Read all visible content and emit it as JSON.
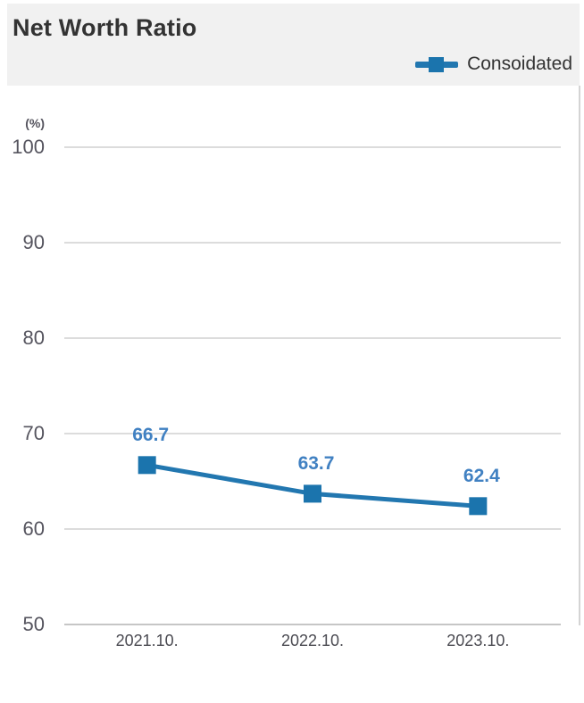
{
  "header": {
    "title": "Net Worth Ratio"
  },
  "legend": {
    "label": "Consoidated"
  },
  "chart_data": {
    "type": "line",
    "title": "Net Worth Ratio",
    "unit_label": "(%)",
    "categories": [
      "2021.10.",
      "2022.10.",
      "2023.10."
    ],
    "series": [
      {
        "name": "Consoidated",
        "values": [
          66.7,
          63.7,
          62.4
        ],
        "color": "#1b74ad",
        "line_color": "#2277b0",
        "marker": "square"
      }
    ],
    "data_labels": [
      "66.7",
      "63.7",
      "62.4"
    ],
    "data_label_color": "#4181c2",
    "ylim": [
      50,
      100
    ],
    "yticks": [
      100,
      90,
      80,
      70,
      60,
      50
    ],
    "grid": "horizontal",
    "gridline_color": "#dcdcdc",
    "legend_position": "top-right",
    "header_background": "#f1f1f1"
  }
}
